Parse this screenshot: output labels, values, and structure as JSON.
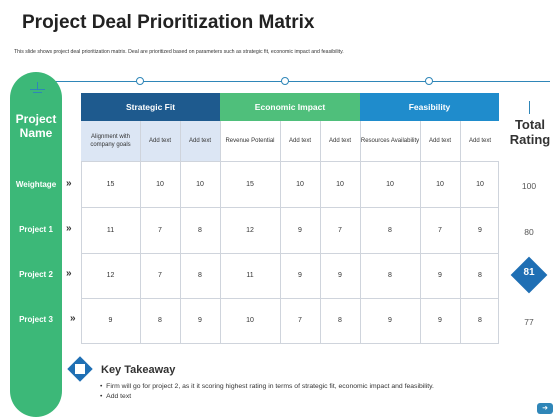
{
  "title": "Project Deal Prioritization Matrix",
  "subtitle": "This slide shows project deal prioritization matrix. Deal are prioritized based on parameters such as strategic fit, economic impact and feasibility.",
  "left_header": "Project Name",
  "total_header": "Total Rating",
  "groups": [
    "Strategic Fit",
    "Economic Impact",
    "Feasibility"
  ],
  "subheaders": [
    "Alignment with company goals",
    "Add text",
    "Add text",
    "Revenue Potential",
    "Add text",
    "Add text",
    "Resources Availability",
    "Add text",
    "Add text"
  ],
  "rows": [
    {
      "label": "Weightage",
      "values": [
        "15",
        "10",
        "10",
        "15",
        "10",
        "10",
        "10",
        "10",
        "10"
      ],
      "total": "100"
    },
    {
      "label": "Project 1",
      "values": [
        "11",
        "7",
        "8",
        "12",
        "9",
        "7",
        "8",
        "7",
        "9"
      ],
      "total": "80"
    },
    {
      "label": "Project 2",
      "values": [
        "12",
        "7",
        "8",
        "11",
        "9",
        "9",
        "8",
        "9",
        "8"
      ],
      "total": "81"
    },
    {
      "label": "Project 3",
      "values": [
        "9",
        "8",
        "9",
        "10",
        "7",
        "8",
        "9",
        "9",
        "8"
      ],
      "total": "77"
    }
  ],
  "chevron": "»",
  "key_takeaway": {
    "title": "Key Takeaway",
    "bullets": [
      "Firm will go for project 2, as it it scoring highest rating in terms of strategic fit, economic impact and feasibility.",
      "Add text"
    ]
  },
  "icons": {
    "next": "arrow-right-icon",
    "key": "diamond-icon"
  },
  "colors": {
    "strategic_fit": "#1e5a8e",
    "economic_impact": "#4fbf7b",
    "feasibility": "#1f8ccc",
    "sidebar": "#3cb878",
    "highlight": "#1f6fb4"
  }
}
